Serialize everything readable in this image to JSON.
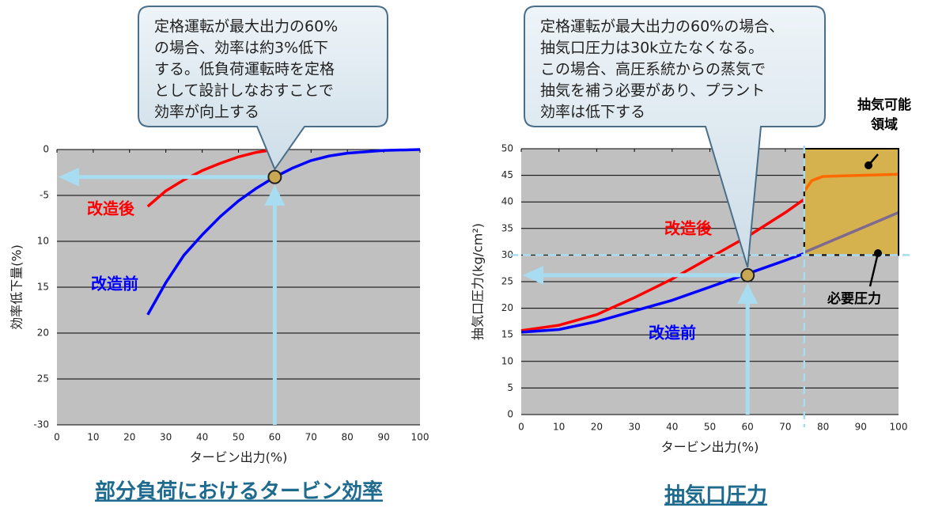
{
  "chart_data": [
    {
      "type": "line",
      "title": "部分負荷におけるタービン効率",
      "xlabel": "タービン出力(%)",
      "ylabel": "効率低下量(%)",
      "xlim": [
        0,
        100
      ],
      "xticks": [
        0,
        10,
        20,
        30,
        40,
        50,
        60,
        70,
        80,
        90,
        100
      ],
      "ylim": [
        -30,
        0
      ],
      "yticks": [
        0,
        -5,
        {
          "value": -10,
          "label": "10"
        },
        {
          "value": -15,
          "label": "15"
        },
        {
          "value": -20,
          "label": "20"
        },
        {
          "value": -25,
          "label": "25"
        },
        -30
      ],
      "grid": true,
      "series": [
        {
          "name": "改造後",
          "color": "#ff0000",
          "x": [
            25,
            30,
            35,
            40,
            45,
            50,
            55,
            60
          ],
          "values": [
            -6.2,
            -4.5,
            -3.3,
            -2.3,
            -1.5,
            -0.8,
            -0.3,
            0
          ]
        },
        {
          "name": "改造前",
          "color": "#0000ff",
          "x": [
            25,
            30,
            35,
            40,
            45,
            50,
            55,
            60,
            65,
            70,
            75,
            80,
            90,
            100
          ],
          "values": [
            -18,
            -14.5,
            -11.5,
            -9.3,
            -7.3,
            -5.6,
            -4.2,
            -3,
            -2,
            -1.2,
            -0.7,
            -0.4,
            -0.1,
            0
          ]
        }
      ],
      "marker": {
        "x": 60,
        "y": -3
      },
      "annotation_lines": [
        "定格運転が最大出力の60%",
        "の場合、効率は約3%低下",
        "する。低負荷運転時を定格",
        "として設計しなおすことで",
        "効率が向上する"
      ]
    },
    {
      "type": "line",
      "title": "抽気口圧力",
      "xlabel": "タービン出力(%)",
      "ylabel": "抽気口圧力(kg/cm²)",
      "xlim": [
        0,
        100
      ],
      "xticks": [
        0,
        10,
        20,
        30,
        40,
        50,
        60,
        70,
        80,
        90,
        100
      ],
      "ylim": [
        0,
        50
      ],
      "yticks": [
        0,
        5,
        10,
        15,
        20,
        25,
        30,
        35,
        40,
        45,
        50
      ],
      "grid": true,
      "series": [
        {
          "name": "改造後",
          "color": "#ff0000",
          "x": [
            0,
            10,
            20,
            30,
            40,
            50,
            60,
            70,
            75
          ],
          "values": [
            15.8,
            16.8,
            18.8,
            22,
            25.5,
            29.5,
            33.5,
            38,
            40.5
          ]
        },
        {
          "name": "改造前",
          "color": "#0000ff",
          "x": [
            0,
            10,
            20,
            30,
            40,
            50,
            60,
            70,
            75
          ],
          "values": [
            15.5,
            16,
            17.5,
            19.5,
            21.5,
            24,
            26.5,
            29,
            30.3
          ]
        },
        {
          "color": "#ff6a00",
          "x": [
            75,
            77,
            80,
            90,
            100
          ],
          "values": [
            42,
            44,
            44.8,
            45,
            45.2
          ]
        },
        {
          "color": "#7f6a8f",
          "x": [
            75,
            100
          ],
          "values": [
            30.5,
            38
          ]
        }
      ],
      "marker": {
        "x": 60,
        "y": 26.2
      },
      "reference_lines": {
        "x": 75,
        "y": 30
      },
      "region": {
        "x": [
          75,
          100
        ],
        "y": [
          30,
          50
        ],
        "color": "#d6b24e",
        "label_lines": [
          "抽気可能",
          "領域"
        ]
      },
      "required_label": "必要圧力",
      "annotation_lines": [
        "定格運転が最大出力の60%の場合、",
        "抽気口圧力は30k立たなくなる。",
        "この場合、高圧系統からの蒸気で",
        "抽気を補う必要があり、プラント",
        "効率は低下する"
      ]
    }
  ]
}
